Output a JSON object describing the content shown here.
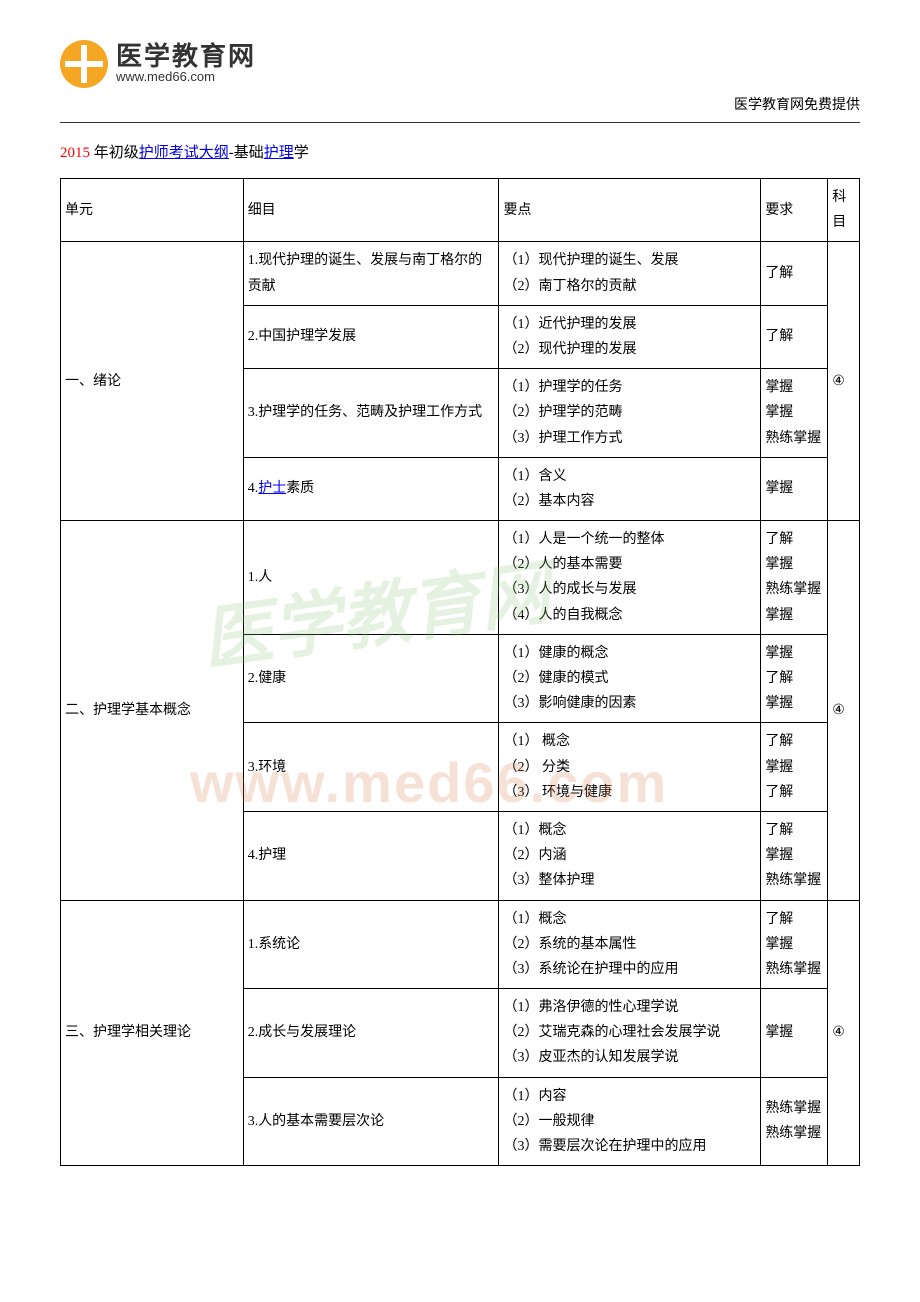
{
  "header": {
    "logo_cn": "医学教育网",
    "logo_en": "www.med66.com",
    "right_text": "医学教育网免费提供"
  },
  "title": {
    "prefix_red": "2015 ",
    "mid_black": "年初级",
    "link1": "护师考试大纲",
    "dash": "-基础",
    "link2": "护理",
    "suffix_black": "学"
  },
  "table": {
    "headers": {
      "unit": "单元",
      "detail": "细目",
      "point": "要点",
      "req": "要求",
      "subject": "科目"
    },
    "sections": [
      {
        "unit": "一、绪论",
        "subject": "④",
        "rows": [
          {
            "detail_plain": "1.现代护理的诞生、发展与南丁格尔的贡献",
            "points": "（1）现代护理的诞生、发展\n（2）南丁格尔的贡献",
            "req": "了解"
          },
          {
            "detail_plain": "2.中国护理学发展",
            "points": "（1）近代护理的发展\n（2）现代护理的发展",
            "req": "了解"
          },
          {
            "detail_plain": "3.护理学的任务、范畴及护理工作方式",
            "points": "（1）护理学的任务\n（2）护理学的范畴\n（3）护理工作方式",
            "req": "掌握\n掌握\n熟练掌握"
          },
          {
            "detail_pre": "4.",
            "detail_link": "护士",
            "detail_post": "素质",
            "points": "（1）含义\n（2）基本内容",
            "req": "掌握"
          }
        ]
      },
      {
        "unit": "二、护理学基本概念",
        "subject": "④",
        "rows": [
          {
            "detail_plain": "1.人",
            "points": "（1）人是一个统一的整体\n（2）人的基本需要\n（3）人的成长与发展\n（4）人的自我概念",
            "req": "了解\n掌握\n熟练掌握\n掌握"
          },
          {
            "detail_plain": "2.健康",
            "points": "（1）健康的概念\n（2）健康的模式\n（3）影响健康的因素",
            "req": "掌握\n了解\n掌握"
          },
          {
            "detail_plain": "3.环境",
            "points": "（1）  概念\n（2）  分类\n（3）  环境与健康",
            "req": "了解\n掌握\n了解"
          },
          {
            "detail_plain": "4.护理",
            "points": "（1）概念\n（2）内涵\n（3）整体护理",
            "req": "了解\n掌握\n熟练掌握"
          }
        ]
      },
      {
        "unit": "三、护理学相关理论",
        "subject": "④",
        "rows": [
          {
            "detail_plain": "1.系统论",
            "points": "（1）概念\n（2）系统的基本属性\n（3）系统论在护理中的应用",
            "req": "了解\n掌握\n熟练掌握"
          },
          {
            "detail_plain": "2.成长与发展理论",
            "points": "（1）弗洛伊德的性心理学说\n（2）艾瑞克森的心理社会发展学说\n（3）皮亚杰的认知发展学说",
            "req": "掌握"
          },
          {
            "detail_plain": "3.人的基本需要层次论",
            "points": "（1）内容\n（2）一般规律\n（3）需要层次论在护理中的应用",
            "req": "熟练掌握\n熟练掌握"
          }
        ]
      }
    ]
  },
  "watermarks": {
    "cn": "医学教育网",
    "en": "www.med66.com"
  }
}
